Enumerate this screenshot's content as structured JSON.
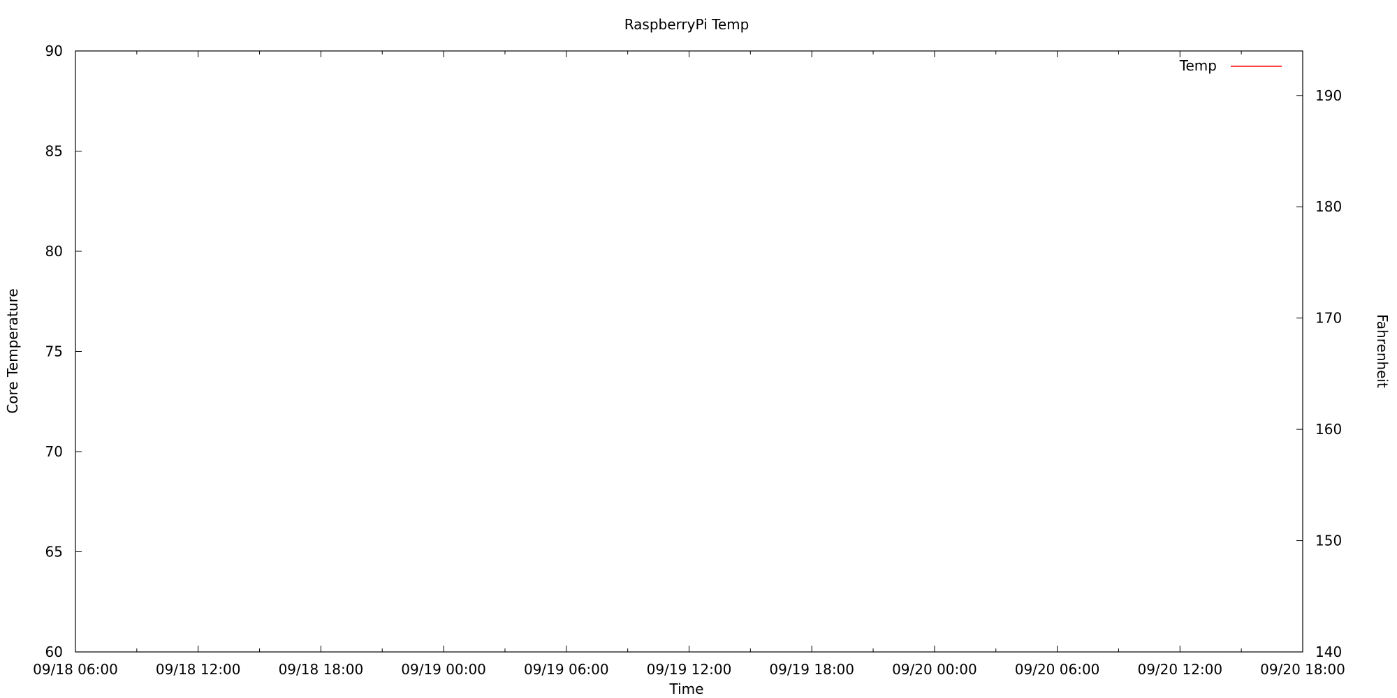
{
  "chart_data": {
    "type": "line",
    "title": "RaspberryPi Temp",
    "xlabel": "Time",
    "ylabel": "Core Temperature",
    "y2label": "Fahrenheit",
    "x_tick_labels": [
      "09/18 06:00",
      "09/18 12:00",
      "09/18 18:00",
      "09/19 00:00",
      "09/19 06:00",
      "09/19 12:00",
      "09/19 18:00",
      "09/20 00:00",
      "09/20 06:00",
      "09/20 12:00",
      "09/20 18:00"
    ],
    "xlim": [
      "09/18 06:00",
      "09/20 18:00"
    ],
    "ylim": [
      60,
      90
    ],
    "y_ticks": [
      60,
      65,
      70,
      75,
      80,
      85,
      90
    ],
    "y2lim": [
      140,
      194
    ],
    "y2_ticks": [
      140,
      150,
      160,
      170,
      180,
      190
    ],
    "grid": false,
    "legend_position": "top-right",
    "series": [
      {
        "name": "Temp",
        "color": "#ff0000",
        "x": [],
        "y": []
      }
    ]
  }
}
